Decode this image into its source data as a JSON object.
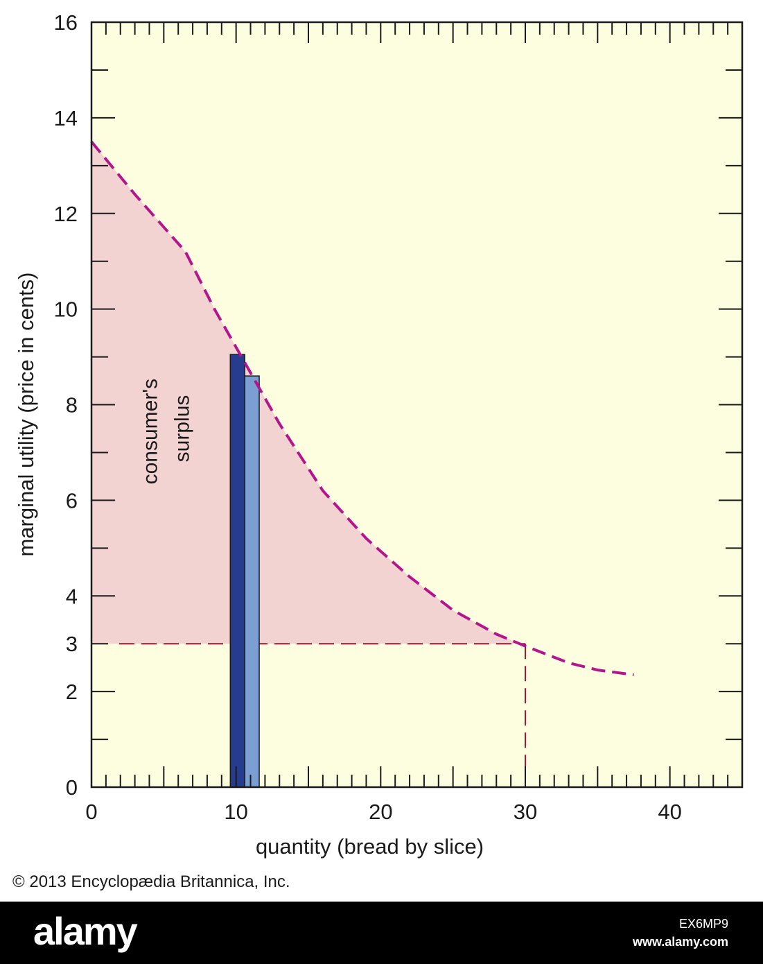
{
  "chart_data": {
    "type": "line",
    "xlabel": "quantity (bread by slice)",
    "ylabel": "marginal utility (price in cents)",
    "xlim": [
      0,
      45
    ],
    "ylim": [
      0,
      16
    ],
    "x_ticks": [
      0,
      10,
      20,
      30,
      40
    ],
    "y_ticks": [
      0,
      2,
      3,
      4,
      6,
      8,
      10,
      12,
      14,
      16
    ],
    "grid": false,
    "colors": {
      "background": "#fdfde0",
      "surplus_area": "#f2d3d2",
      "curve": "#b5158c",
      "price_line": "#a01830",
      "bar_dark": "#263d8f",
      "bar_light": "#7b9fd3"
    },
    "series": [
      {
        "style": "dashed",
        "points": [
          [
            0,
            13.5
          ],
          [
            3,
            12.4
          ],
          [
            6.5,
            11.2
          ],
          [
            8.5,
            10.0
          ],
          [
            10,
            9.2
          ],
          [
            11.5,
            8.4
          ],
          [
            13,
            7.6
          ],
          [
            16,
            6.2
          ],
          [
            19,
            5.2
          ],
          [
            22,
            4.4
          ],
          [
            25,
            3.7
          ],
          [
            28,
            3.2
          ],
          [
            30,
            2.95
          ],
          [
            33,
            2.6
          ],
          [
            35,
            2.45
          ],
          [
            37.5,
            2.35
          ]
        ]
      }
    ],
    "price_line": {
      "y": 3,
      "x_end": 30
    },
    "bars": [
      {
        "x0": 9.6,
        "x1": 10.6,
        "value": 9.05
      },
      {
        "x0": 10.6,
        "x1": 11.6,
        "value": 8.6
      }
    ],
    "annotation": {
      "text_line1": "consumer's",
      "text_line2": "surplus",
      "x": 5,
      "y": 7.5
    }
  },
  "copyright": "© 2013 Encyclopædia Britannica, Inc.",
  "footer": {
    "logo": "alamy",
    "image_id": "EX6MP9",
    "url": "www.alamy.com"
  }
}
